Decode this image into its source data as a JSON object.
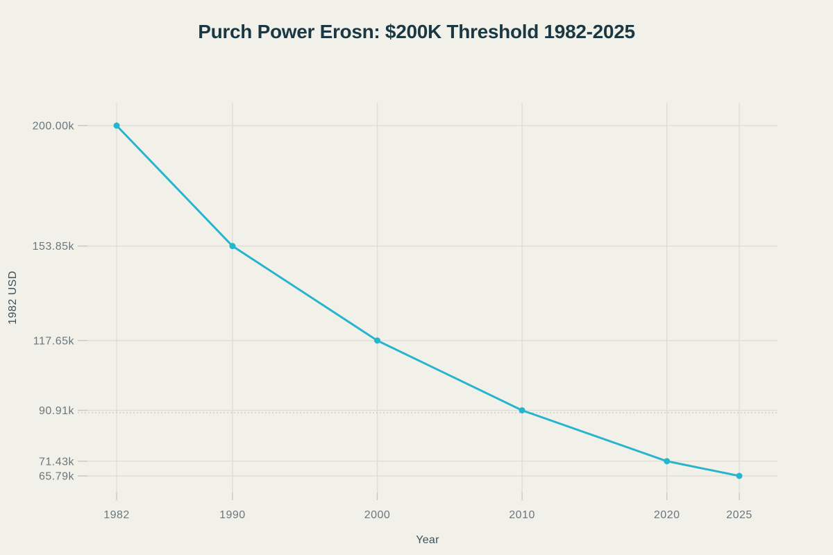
{
  "chart_data": {
    "type": "line",
    "title": "Purch Power Erosn: $200K Threshold 1982-2025",
    "xlabel": "Year",
    "ylabel": "1982 USD",
    "x": [
      1982,
      1990,
      2000,
      2010,
      2020,
      2025
    ],
    "series": [
      {
        "name": "1982 USD",
        "values": [
          200000,
          153850,
          117650,
          90910,
          71430,
          65790
        ]
      }
    ],
    "x_ticks": [
      {
        "value": 1982,
        "label": "1982"
      },
      {
        "value": 1990,
        "label": "1990"
      },
      {
        "value": 2000,
        "label": "2000"
      },
      {
        "value": 2010,
        "label": "2010"
      },
      {
        "value": 2020,
        "label": "2020"
      },
      {
        "value": 2025,
        "label": "2025"
      }
    ],
    "y_ticks": [
      {
        "value": 200000,
        "label": "200.00k"
      },
      {
        "value": 153850,
        "label": "153.85k"
      },
      {
        "value": 117650,
        "label": "117.65k"
      },
      {
        "value": 90910,
        "label": "90.91k"
      },
      {
        "value": 71430,
        "label": "71.43k"
      },
      {
        "value": 65790,
        "label": "65.79k"
      }
    ],
    "reference_line": {
      "value": 90000,
      "style": "dotted"
    },
    "xlim": [
      1979.3,
      2027.6
    ],
    "ylim": [
      59400,
      208800
    ],
    "grid": true,
    "legend": "none",
    "colors": {
      "background": "#f1f1ea",
      "line": "#27b5ce",
      "marker": "#27b5ce",
      "title": "#1b3842",
      "axis_title": "#3d4f57",
      "tick_label": "#6b767b",
      "grid": "#dcdcd5",
      "tick": "#c6c6bf",
      "reference": "#cfcfc8"
    }
  }
}
